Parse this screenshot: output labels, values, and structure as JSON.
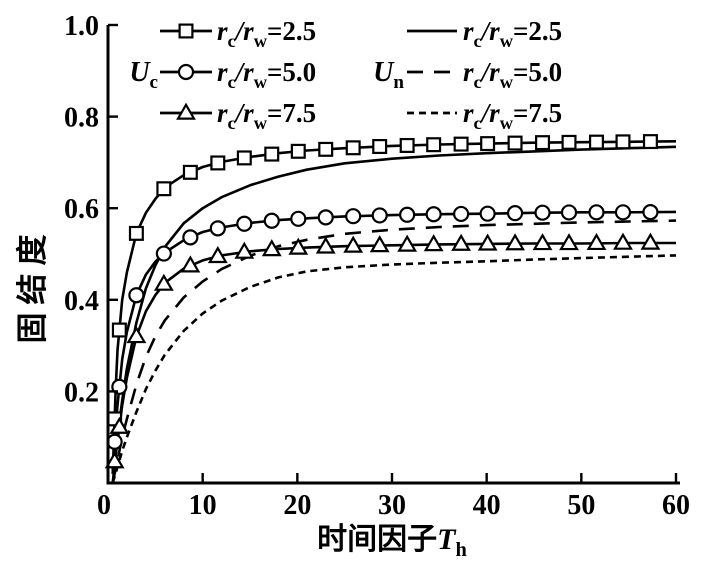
{
  "figure": {
    "background": "#ffffff",
    "ink": "#000000"
  },
  "chart_data": {
    "type": "line",
    "title": "",
    "xlabel": "时间因子T_h",
    "ylabel": "固结度",
    "xlim": [
      0,
      60
    ],
    "ylim": [
      0,
      1.0
    ],
    "grid": false,
    "xtick_labels": [
      "0",
      "10",
      "20",
      "30",
      "40",
      "50",
      "60"
    ],
    "xtick_values": [
      0,
      10,
      20,
      30,
      40,
      50,
      60
    ],
    "ytick_labels": [
      "0.2",
      "0.4",
      "0.6",
      "0.8",
      "1.0"
    ],
    "ytick_values": [
      0.2,
      0.4,
      0.6,
      0.8,
      1.0
    ],
    "legend": {
      "position": "top-inside",
      "groups": [
        {
          "group_label": "U_c",
          "entries": [
            {
              "label": "r_c/r_w=2.5",
              "marker": "square",
              "line": "solid"
            },
            {
              "label": "r_c/r_w=5.0",
              "marker": "circle",
              "line": "solid"
            },
            {
              "label": "r_c/r_w=7.5",
              "marker": "triangle",
              "line": "solid"
            }
          ]
        },
        {
          "group_label": "U_n",
          "entries": [
            {
              "label": "r_c/r_w=2.5",
              "marker": null,
              "line": "solid"
            },
            {
              "label": "r_c/r_w=5.0",
              "marker": null,
              "line": "long-dash"
            },
            {
              "label": "r_c/r_w=7.5",
              "marker": null,
              "line": "short-dash"
            }
          ]
        }
      ]
    },
    "marker_ts": [
      0.7,
      1.2,
      3,
      5.9,
      8.7,
      11.6,
      14.4,
      17.3,
      20.1,
      23,
      25.9,
      28.7,
      31.6,
      34.4,
      37.3,
      40.1,
      43,
      45.9,
      48.7,
      51.6,
      54.4,
      57.3
    ],
    "series": [
      {
        "name": "U_c r_c/r_w=2.5",
        "group": "U_c",
        "ratio": 2.5,
        "marker": "square",
        "line": "solid",
        "points": [
          [
            0.5,
            0.02
          ],
          [
            0.8,
            0.2
          ],
          [
            1,
            0.29
          ],
          [
            1.5,
            0.4
          ],
          [
            2,
            0.46
          ],
          [
            3,
            0.545
          ],
          [
            4,
            0.59
          ],
          [
            5,
            0.62
          ],
          [
            6,
            0.645
          ],
          [
            8,
            0.672
          ],
          [
            10,
            0.69
          ],
          [
            12,
            0.701
          ],
          [
            15,
            0.712
          ],
          [
            18,
            0.72
          ],
          [
            21,
            0.726
          ],
          [
            25,
            0.731
          ],
          [
            30,
            0.736
          ],
          [
            35,
            0.739
          ],
          [
            40,
            0.741
          ],
          [
            45,
            0.743
          ],
          [
            50,
            0.744
          ],
          [
            55,
            0.745
          ],
          [
            60,
            0.746
          ]
        ]
      },
      {
        "name": "U_c r_c/r_w=5.0",
        "group": "U_c",
        "ratio": 5.0,
        "marker": "circle",
        "line": "solid",
        "points": [
          [
            0.5,
            0.03
          ],
          [
            0.8,
            0.12
          ],
          [
            1,
            0.17
          ],
          [
            1.5,
            0.27
          ],
          [
            2,
            0.33
          ],
          [
            3,
            0.41
          ],
          [
            4,
            0.455
          ],
          [
            5,
            0.483
          ],
          [
            6,
            0.503
          ],
          [
            8,
            0.53
          ],
          [
            10,
            0.548
          ],
          [
            12,
            0.558
          ],
          [
            15,
            0.568
          ],
          [
            18,
            0.574
          ],
          [
            21,
            0.578
          ],
          [
            25,
            0.582
          ],
          [
            30,
            0.585
          ],
          [
            35,
            0.587
          ],
          [
            40,
            0.588
          ],
          [
            45,
            0.59
          ],
          [
            50,
            0.591
          ],
          [
            55,
            0.591
          ],
          [
            60,
            0.592
          ]
        ]
      },
      {
        "name": "U_c r_c/r_w=7.5",
        "group": "U_c",
        "ratio": 7.5,
        "marker": "triangle",
        "line": "solid",
        "points": [
          [
            0.5,
            0.02
          ],
          [
            0.8,
            0.06
          ],
          [
            1,
            0.09
          ],
          [
            1.5,
            0.17
          ],
          [
            2,
            0.23
          ],
          [
            3,
            0.32
          ],
          [
            4,
            0.375
          ],
          [
            5,
            0.41
          ],
          [
            6,
            0.437
          ],
          [
            8,
            0.468
          ],
          [
            10,
            0.486
          ],
          [
            12,
            0.497
          ],
          [
            15,
            0.506
          ],
          [
            18,
            0.511
          ],
          [
            21,
            0.514
          ],
          [
            25,
            0.517
          ],
          [
            30,
            0.519
          ],
          [
            35,
            0.521
          ],
          [
            40,
            0.522
          ],
          [
            45,
            0.523
          ],
          [
            50,
            0.523
          ],
          [
            55,
            0.524
          ],
          [
            60,
            0.524
          ]
        ]
      },
      {
        "name": "U_n r_c/r_w=2.5",
        "group": "U_n",
        "ratio": 2.5,
        "marker": null,
        "line": "solid",
        "points": [
          [
            0.5,
            0.0
          ],
          [
            1,
            0.1
          ],
          [
            1.5,
            0.18
          ],
          [
            2,
            0.25
          ],
          [
            3,
            0.35
          ],
          [
            4,
            0.425
          ],
          [
            5,
            0.475
          ],
          [
            6,
            0.515
          ],
          [
            8,
            0.567
          ],
          [
            10,
            0.6
          ],
          [
            12,
            0.624
          ],
          [
            15,
            0.65
          ],
          [
            18,
            0.669
          ],
          [
            21,
            0.684
          ],
          [
            25,
            0.698
          ],
          [
            30,
            0.708
          ],
          [
            35,
            0.715
          ],
          [
            40,
            0.72
          ],
          [
            45,
            0.724
          ],
          [
            50,
            0.728
          ],
          [
            55,
            0.731
          ],
          [
            60,
            0.734
          ]
        ]
      },
      {
        "name": "U_n r_c/r_w=5.0",
        "group": "U_n",
        "ratio": 5.0,
        "marker": null,
        "line": "long-dash",
        "points": [
          [
            0.5,
            0.0
          ],
          [
            1,
            0.05
          ],
          [
            1.5,
            0.1
          ],
          [
            2,
            0.14
          ],
          [
            3,
            0.215
          ],
          [
            4,
            0.275
          ],
          [
            5,
            0.32
          ],
          [
            6,
            0.355
          ],
          [
            8,
            0.405
          ],
          [
            10,
            0.44
          ],
          [
            12,
            0.467
          ],
          [
            15,
            0.496
          ],
          [
            18,
            0.517
          ],
          [
            21,
            0.531
          ],
          [
            25,
            0.544
          ],
          [
            30,
            0.553
          ],
          [
            35,
            0.559
          ],
          [
            40,
            0.563
          ],
          [
            45,
            0.566
          ],
          [
            50,
            0.569
          ],
          [
            55,
            0.571
          ],
          [
            60,
            0.573
          ]
        ]
      },
      {
        "name": "U_n r_c/r_w=7.5",
        "group": "U_n",
        "ratio": 7.5,
        "marker": null,
        "line": "short-dash",
        "points": [
          [
            0.5,
            0.0
          ],
          [
            1,
            0.035
          ],
          [
            1.5,
            0.07
          ],
          [
            2,
            0.1
          ],
          [
            3,
            0.155
          ],
          [
            4,
            0.205
          ],
          [
            5,
            0.245
          ],
          [
            6,
            0.28
          ],
          [
            8,
            0.332
          ],
          [
            10,
            0.37
          ],
          [
            12,
            0.398
          ],
          [
            15,
            0.428
          ],
          [
            18,
            0.449
          ],
          [
            21,
            0.462
          ],
          [
            25,
            0.471
          ],
          [
            30,
            0.477
          ],
          [
            35,
            0.481
          ],
          [
            40,
            0.484
          ],
          [
            45,
            0.488
          ],
          [
            50,
            0.491
          ],
          [
            55,
            0.494
          ],
          [
            60,
            0.497
          ]
        ]
      }
    ]
  }
}
